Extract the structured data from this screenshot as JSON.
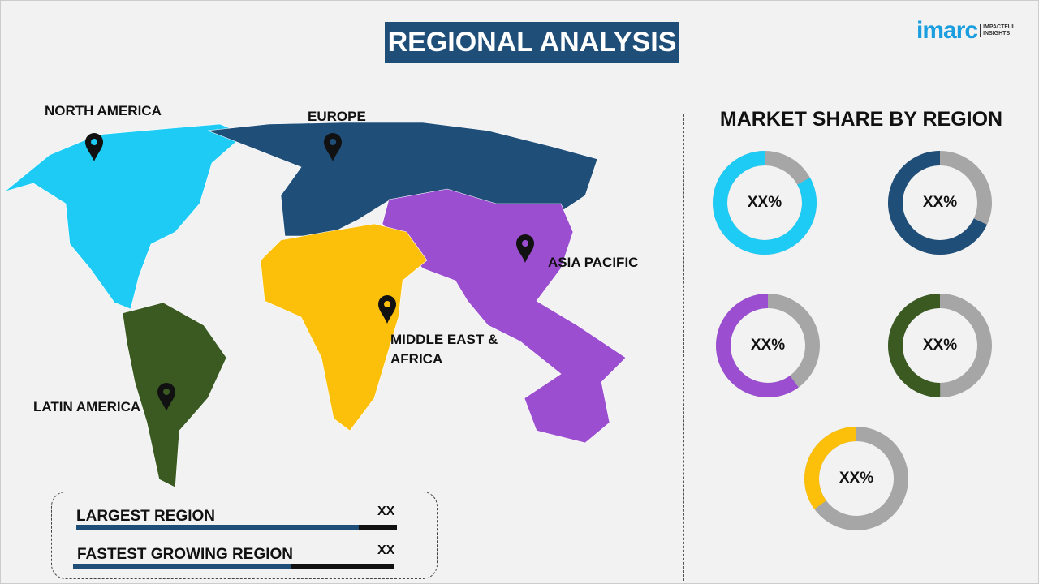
{
  "header": {
    "title": "REGIONAL ANALYSIS",
    "logo_main": "imarc",
    "logo_tag": "IMPACTFUL INSIGHTS"
  },
  "map": {
    "regions": [
      {
        "name": "NORTH AMERICA",
        "color": "#1ecbf5"
      },
      {
        "name": "EUROPE",
        "color": "#1f4e79"
      },
      {
        "name": "ASIA PACIFIC",
        "color": "#9b4fd0"
      },
      {
        "name": "MIDDLE EAST & AFRICA",
        "color": "#fcbf0a"
      },
      {
        "name": "LATIN AMERICA",
        "color": "#3a5a22"
      }
    ],
    "pin_icon": "map-pin-icon"
  },
  "market_share": {
    "title": "MARKET SHARE BY REGION",
    "donuts": [
      {
        "label": "XX%",
        "color": "#1ecbf5",
        "share": 0.83
      },
      {
        "label": "XX%",
        "color": "#1f4e79",
        "share": 0.68
      },
      {
        "label": "XX%",
        "color": "#9b4fd0",
        "share": 0.6
      },
      {
        "label": "XX%",
        "color": "#3a5a22",
        "share": 0.5
      },
      {
        "label": "XX%",
        "color": "#fcbf0a",
        "share": 0.35
      }
    ],
    "remainder_color": "#a6a6a6"
  },
  "summary": {
    "largest": {
      "label": "LARGEST REGION",
      "value": "XX",
      "fill": 0.88
    },
    "fastest": {
      "label": "FASTEST GROWING REGION",
      "value": "XX",
      "fill": 0.68
    }
  }
}
